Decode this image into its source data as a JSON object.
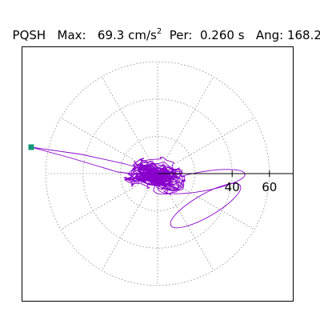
{
  "header": {
    "station": "PQSH",
    "max_label": "Max:",
    "max_value": "69.3",
    "max_unit": "cm/s",
    "max_unit_exp": "2",
    "per_label": "Per:",
    "per_value": "0.260 s",
    "ang_label": "Ang:",
    "ang_value": "168.2"
  },
  "chart_data": {
    "type": "scatter",
    "title": "",
    "plot_style": "polar particle-motion trace",
    "grid": true,
    "grid_style": "dotted",
    "rings": [
      20,
      40,
      60
    ],
    "spokes_deg": [
      0,
      30,
      60,
      90,
      120,
      150,
      180,
      210,
      240,
      270,
      300,
      330
    ],
    "radial_tick_labels": [
      "40",
      "60"
    ],
    "radial_range": [
      0,
      69.3
    ],
    "max_amplitude": 69.3,
    "max_angle_deg": 168.2,
    "trace_color": "#8800cc",
    "marker_color": "#119977",
    "marker_shape": "square"
  }
}
